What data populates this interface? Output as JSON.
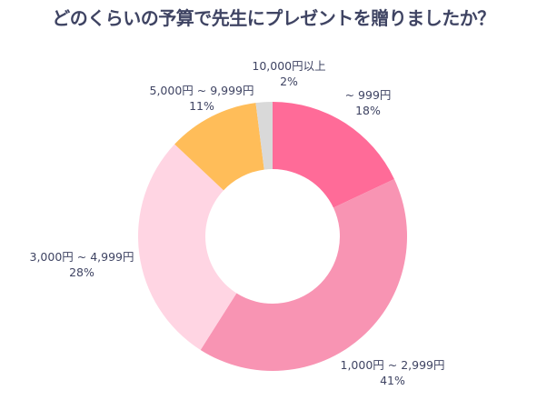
{
  "chart_data": {
    "type": "pie",
    "donut": true,
    "title": "どのくらいの予算で先生にプレゼントを贈りましたか？",
    "categories": [
      "~ 999円",
      "1,000円 ~ 2,999円",
      "3,000円 ~ 4,999円",
      "5,000円 ~ 9,999円",
      "10,000円以上"
    ],
    "values": [
      18,
      41,
      28,
      11,
      2
    ],
    "value_labels": [
      "18%",
      "41%",
      "28%",
      "11%",
      "2%"
    ],
    "colors": [
      "#FF6B98",
      "#F894B3",
      "#FFD5E3",
      "#FFBD59",
      "#D9D9D9"
    ],
    "start": "top",
    "direction": "clockwise",
    "legend": "none"
  }
}
